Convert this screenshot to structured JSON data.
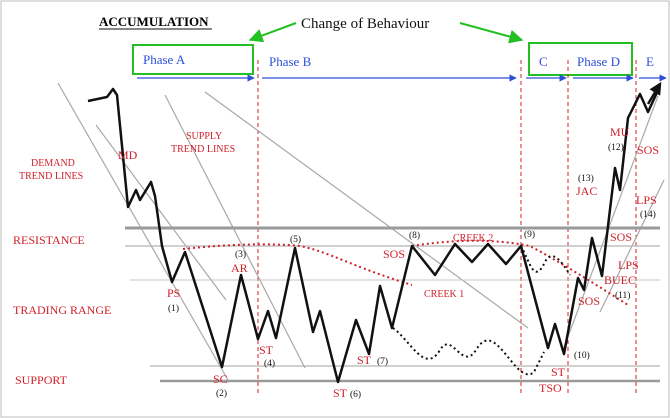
{
  "title": "ACCUMULATION",
  "change_of_behaviour": "Change of Behaviour",
  "phases": {
    "a": "Phase A",
    "b": "Phase B",
    "c": "C",
    "d": "Phase D",
    "e": "E"
  },
  "side_labels": {
    "demand_trend_lines": [
      "DEMAND",
      "TREND LINES"
    ],
    "supply_trend_lines": [
      "SUPPLY",
      "TREND LINES"
    ],
    "resistance": "RESISTANCE",
    "trading_range": "TRADING RANGE",
    "support": "SUPPORT"
  },
  "event_labels": {
    "md": "MD",
    "ps": "PS",
    "sc": "SC",
    "ar": "AR",
    "st_4": "ST",
    "st_6": "ST",
    "st_7": "ST",
    "sos_8": "SOS",
    "creek_2": "CREEK 2",
    "creek_1": "CREEK 1",
    "st_tso": "ST",
    "tso": "TSO",
    "jac": "JAC",
    "mu": "MU",
    "sos_upper": "SOS",
    "lps_14": "LPS",
    "sos_mid": "SOS",
    "lps_11": "LPS",
    "buec": "BUEC",
    "sos_low": "SOS"
  },
  "numbers": {
    "n1": "(1)",
    "n2": "(2)",
    "n3": "(3)",
    "n4": "(4)",
    "n5": "(5)",
    "n6": "(6)",
    "n7": "(7)",
    "n8": "(8)",
    "n9": "(9)",
    "n10": "(10)",
    "n11": "(11)",
    "n12": "(12)",
    "n13": "(13)",
    "n14": "(14)"
  },
  "colors": {
    "red": "#d0202a",
    "blue": "#2b4fd8",
    "green": "#22c022",
    "grey": "#9a9a9a",
    "black": "#111111"
  }
}
